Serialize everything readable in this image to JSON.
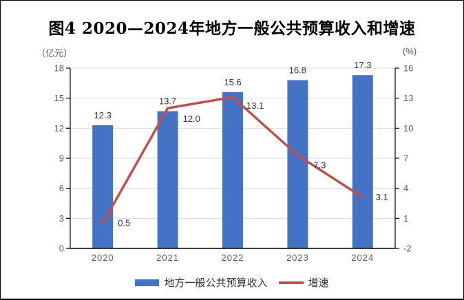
{
  "title": "图4  2020—2024年地方一般公共预算收入和增速",
  "legend": {
    "bar_label": "地方一般公共预算收入",
    "line_label": "增速"
  },
  "chart_data": {
    "type": "bar+line",
    "title": "图4  2020—2024年地方一般公共预算收入和增速",
    "categories": [
      "2020",
      "2021",
      "2022",
      "2023",
      "2024"
    ],
    "series": [
      {
        "name": "地方一般公共预算收入",
        "type": "bar",
        "axis": "left",
        "color": "#4472C4",
        "values": [
          12.3,
          13.7,
          15.6,
          16.8,
          17.3
        ]
      },
      {
        "name": "增速",
        "type": "line",
        "axis": "right",
        "color": "#C0504D",
        "values": [
          0.5,
          12.0,
          13.1,
          7.3,
          3.1
        ]
      }
    ],
    "left_axis": {
      "unit": "（亿元）",
      "min": 0,
      "max": 18,
      "ticks": [
        0,
        3,
        6,
        9,
        12,
        15,
        18
      ]
    },
    "right_axis": {
      "unit": "(%)",
      "min": -2,
      "max": 16,
      "ticks": [
        -2,
        1,
        4,
        7,
        10,
        13,
        16
      ]
    },
    "x_axis": {
      "labels": [
        "2020",
        "2021",
        "2022",
        "2023",
        "2024"
      ]
    },
    "grid": "horizontal",
    "legend_position": "bottom",
    "colors": {
      "grid": "#D9D9D9",
      "axis": "#000000",
      "tick_label": "#595959",
      "data_label": "#333333"
    }
  }
}
